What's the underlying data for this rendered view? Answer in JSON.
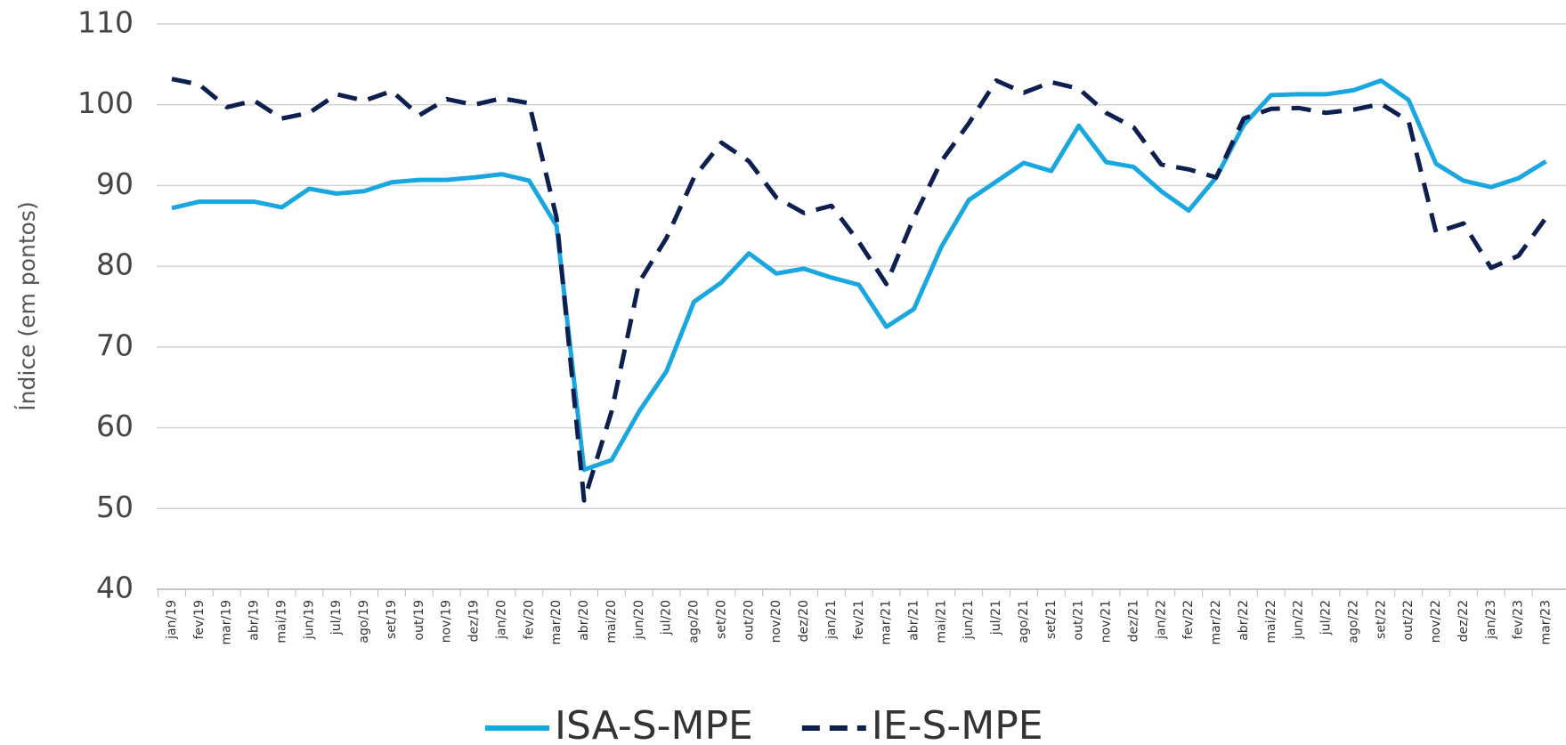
{
  "chart_data": {
    "type": "line",
    "y_label": "Índice (em pontos)",
    "categories": [
      "jan/19",
      "fev/19",
      "mar/19",
      "abr/19",
      "mai/19",
      "jun/19",
      "jul/19",
      "ago/19",
      "set/19",
      "out/19",
      "nov/19",
      "dez/19",
      "jan/20",
      "fev/20",
      "mar/20",
      "abr/20",
      "mai/20",
      "jun/20",
      "jul/20",
      "ago/20",
      "set/20",
      "out/20",
      "nov/20",
      "dez/20",
      "jan/21",
      "fev/21",
      "mar/21",
      "abr/21",
      "mai/21",
      "jun/21",
      "jul/21",
      "ago/21",
      "set/21",
      "out/21",
      "nov/21",
      "dez/21",
      "jan/22",
      "fev/22",
      "mar/22",
      "abr/22",
      "mai/22",
      "jun/22",
      "jul/22",
      "ago/22",
      "set/22",
      "out/22",
      "nov/22",
      "dez/22",
      "jan/23",
      "fev/23",
      "mar/23"
    ],
    "series": [
      {
        "name": "ISA-S-MPE",
        "color": "#1aa7e0",
        "dash": false,
        "values": [
          87.2,
          88,
          88,
          88,
          87.3,
          89.6,
          89,
          89.3,
          90.4,
          90.7,
          90.7,
          91,
          91.4,
          90.6,
          85,
          54.8,
          56,
          62,
          67,
          75.6,
          78,
          81.6,
          79.1,
          79.7,
          78.6,
          77.7,
          72.5,
          74.7,
          82.4,
          88.2,
          90.5,
          92.8,
          91.8,
          97.4,
          92.9,
          92.3,
          89.3,
          86.9,
          91,
          97.5,
          101.2,
          101.3,
          101.3,
          101.8,
          103,
          100.6,
          92.7,
          90.6,
          89.8,
          90.9,
          93
        ]
      },
      {
        "name": "IE-S-MPE",
        "color": "#0c1f4f",
        "dash": true,
        "values": [
          103.2,
          102.5,
          99.7,
          100.5,
          98.3,
          99,
          101.3,
          100.5,
          101.7,
          98.7,
          100.7,
          100,
          100.8,
          100.2,
          86,
          51,
          62,
          78,
          83.5,
          91,
          95.3,
          93,
          88.5,
          86.6,
          87.5,
          83,
          77.8,
          86,
          93,
          97.7,
          103,
          101.5,
          102.8,
          102,
          99,
          97.2,
          92.6,
          92,
          91,
          98.3,
          99.5,
          99.6,
          99,
          99.4,
          100.1,
          98,
          84.2,
          85.3,
          79.8,
          81.3,
          86
        ]
      }
    ],
    "ylim": [
      40,
      110
    ],
    "yticks": [
      40,
      50,
      60,
      70,
      80,
      90,
      100,
      110
    ],
    "grid": true
  }
}
